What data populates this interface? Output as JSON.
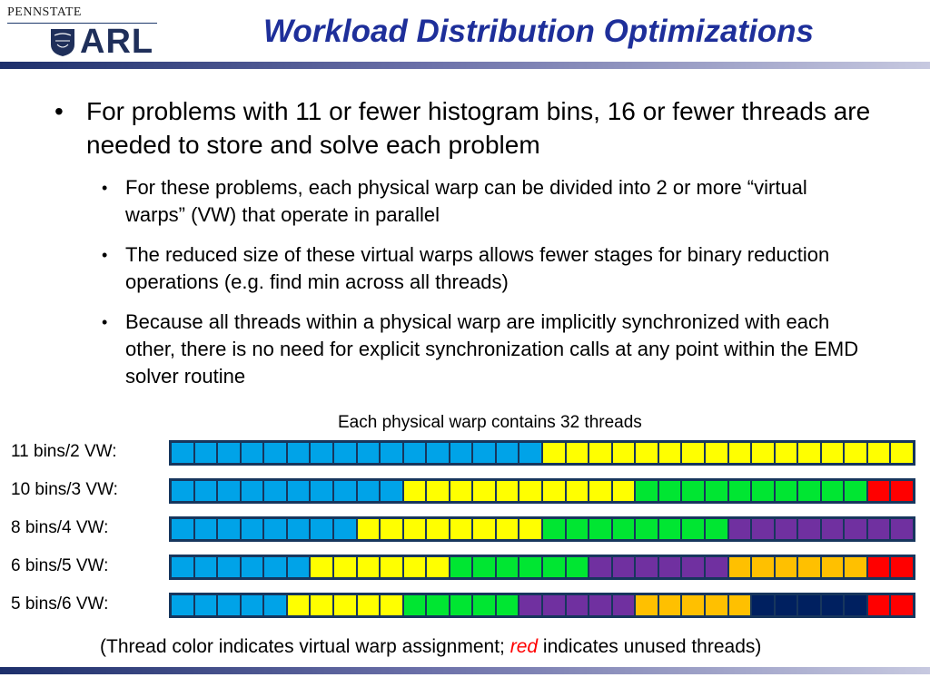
{
  "logo": {
    "top_text": "PENNSTATE",
    "main_text": "ARL",
    "seal_text": "1855"
  },
  "title": "Workload Distribution Optimizations",
  "bullets": [
    {
      "text": "For problems with 11 or fewer histogram bins, 16 or fewer threads are needed to store and solve each problem",
      "sub": [
        "For these problems, each physical warp can be divided into 2 or more “virtual warps” (VW) that operate in parallel",
        "The reduced size of these virtual warps allows fewer stages for binary reduction operations (e.g. find min across all threads)",
        "Because all threads within a physical warp are implicitly synchronized with each other, there is no need for explicit synchronization calls at any point within the EMD solver routine"
      ]
    }
  ],
  "diagram": {
    "caption": "Each physical warp contains 32 threads",
    "threads_per_warp": 32,
    "colors": {
      "blue": "#00a3e8",
      "yellow": "#ffff00",
      "green": "#00e632",
      "purple": "#7030a0",
      "orange": "#ffc000",
      "navy": "#002060",
      "red": "#ff0000"
    },
    "rows": [
      {
        "label": "11 bins/2 VW:",
        "segments": [
          {
            "color": "blue",
            "count": 16
          },
          {
            "color": "yellow",
            "count": 16
          }
        ]
      },
      {
        "label": "10 bins/3 VW:",
        "segments": [
          {
            "color": "blue",
            "count": 10
          },
          {
            "color": "yellow",
            "count": 10
          },
          {
            "color": "green",
            "count": 10
          },
          {
            "color": "red",
            "count": 2
          }
        ]
      },
      {
        "label": "8 bins/4 VW:",
        "segments": [
          {
            "color": "blue",
            "count": 8
          },
          {
            "color": "yellow",
            "count": 8
          },
          {
            "color": "green",
            "count": 8
          },
          {
            "color": "purple",
            "count": 8
          }
        ]
      },
      {
        "label": "6 bins/5 VW:",
        "segments": [
          {
            "color": "blue",
            "count": 6
          },
          {
            "color": "yellow",
            "count": 6
          },
          {
            "color": "green",
            "count": 6
          },
          {
            "color": "purple",
            "count": 6
          },
          {
            "color": "orange",
            "count": 6
          },
          {
            "color": "red",
            "count": 2
          }
        ]
      },
      {
        "label": "5 bins/6 VW:",
        "segments": [
          {
            "color": "blue",
            "count": 5
          },
          {
            "color": "yellow",
            "count": 5
          },
          {
            "color": "green",
            "count": 5
          },
          {
            "color": "purple",
            "count": 5
          },
          {
            "color": "orange",
            "count": 5
          },
          {
            "color": "navy",
            "count": 5
          },
          {
            "color": "red",
            "count": 2
          }
        ]
      }
    ]
  },
  "footnote": {
    "before": "(Thread color indicates virtual warp assignment; ",
    "red_word": "red",
    "after": " indicates unused threads)"
  }
}
